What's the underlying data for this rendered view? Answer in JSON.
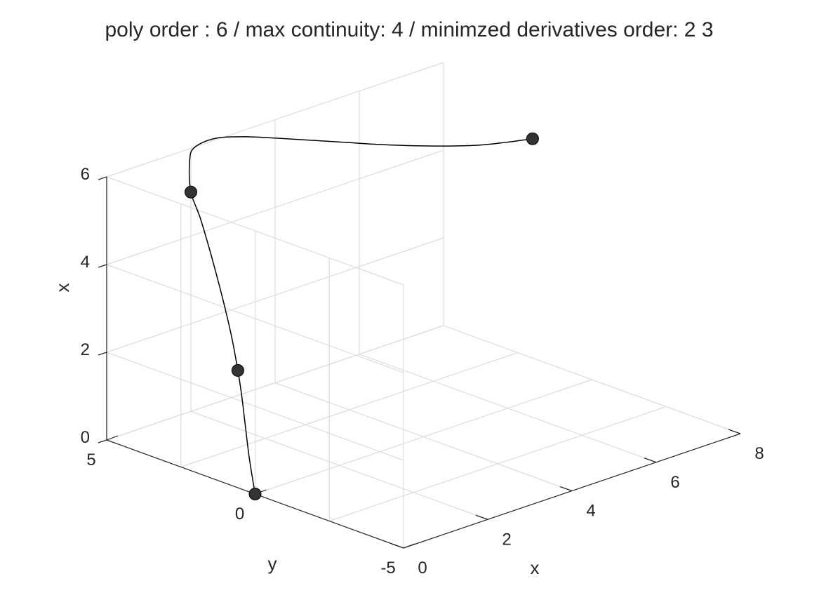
{
  "chart_data": {
    "type": "line",
    "projection": "3d",
    "title": "poly order : 6 / max continuity: 4 / minimzed derivatives order: 2  3",
    "xlabel": "x",
    "ylabel": "y",
    "zlabel": "x",
    "xlim": [
      0,
      8
    ],
    "ylim": [
      -5,
      5
    ],
    "zlim": [
      0,
      6
    ],
    "xticks": [
      "0",
      "2",
      "4",
      "6",
      "8"
    ],
    "yticks": [
      "-5",
      "0",
      "5"
    ],
    "zticks": [
      "0",
      "2",
      "4",
      "6"
    ],
    "grid": true,
    "colors": {
      "curve": "#000000",
      "waypoint": "#333333",
      "grid": "#dcdcdc",
      "axis": "#262626"
    },
    "waypoints": [
      {
        "x": 0,
        "y": 0,
        "z": 0
      },
      {
        "x": 1,
        "y": 2,
        "z": 2
      },
      {
        "x": 2,
        "y": 5,
        "z": 5
      },
      {
        "x": 8,
        "y": 2,
        "z": 5
      }
    ],
    "series": [
      {
        "x": [
          0,
          0.25,
          0.5,
          0.75,
          1,
          1.25,
          1.5,
          1.75,
          2,
          2.25,
          2.5,
          3,
          3.5,
          4,
          4.5,
          5,
          5.5,
          6,
          6.5,
          7,
          7.5,
          8
        ],
        "y": [
          0,
          0.55,
          1.05,
          1.52,
          2,
          2.6,
          3.4,
          4.3,
          5,
          5.4,
          5.6,
          5.6,
          5.3,
          4.9,
          4.45,
          4.0,
          3.55,
          3.1,
          2.7,
          2.4,
          2.2,
          2
        ],
        "z": [
          0,
          0.6,
          1.2,
          1.65,
          2,
          2.65,
          3.6,
          4.6,
          5,
          5.5,
          5.7,
          5.75,
          5.7,
          5.6,
          5.5,
          5.4,
          5.3,
          5.22,
          5.15,
          5.08,
          5.03,
          5
        ]
      }
    ]
  }
}
